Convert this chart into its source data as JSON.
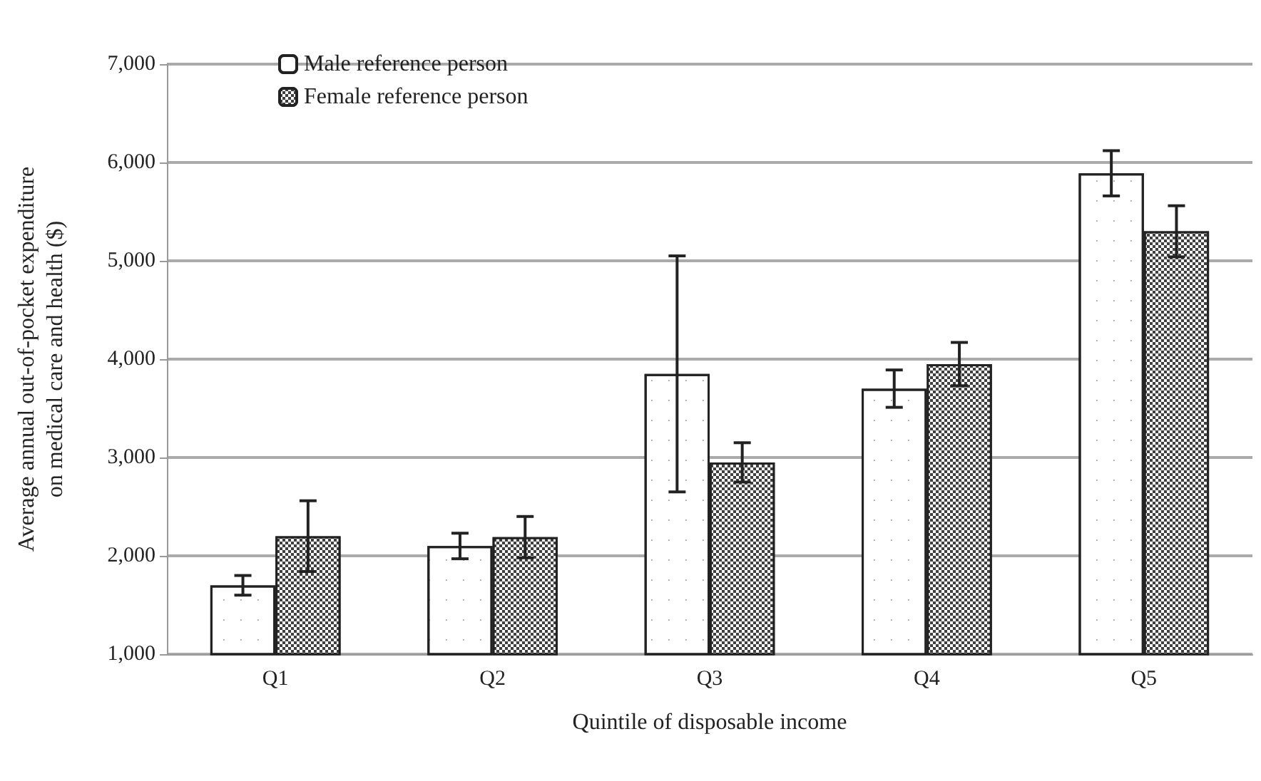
{
  "chart_data": {
    "type": "bar",
    "xlabel": "Quintile of disposable income",
    "ylabel": "Average annual out-of-pocket expenditure\non medical care and health ($)",
    "categories": [
      "Q1",
      "Q2",
      "Q3",
      "Q4",
      "Q5"
    ],
    "series": [
      {
        "name": "Male reference person",
        "color": "#ffffff",
        "values": [
          1700,
          2100,
          3850,
          3700,
          5890
        ],
        "errors": [
          100,
          130,
          1200,
          190,
          230
        ]
      },
      {
        "name": "Female reference person",
        "color": "#404040",
        "values": [
          2200,
          2190,
          2950,
          3950,
          5300
        ],
        "errors": [
          360,
          210,
          200,
          220,
          260
        ]
      }
    ],
    "ylim": [
      1000,
      7000
    ],
    "yticks": [
      {
        "value": 1000,
        "label": "1,000"
      },
      {
        "value": 2000,
        "label": "2,000"
      },
      {
        "value": 3000,
        "label": "3,000"
      },
      {
        "value": 4000,
        "label": "4,000"
      },
      {
        "value": 5000,
        "label": "5,000"
      },
      {
        "value": 6000,
        "label": "6,000"
      },
      {
        "value": 7000,
        "label": "7,000"
      }
    ],
    "grid": "y",
    "legend": "top left"
  }
}
